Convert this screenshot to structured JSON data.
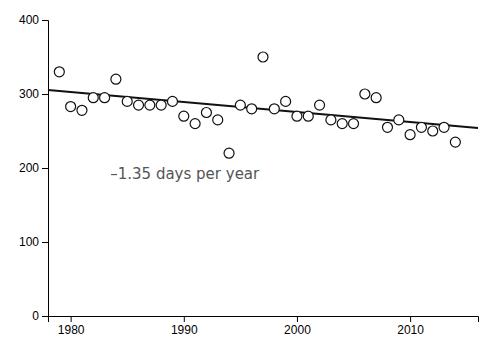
{
  "chart_data": {
    "type": "scatter",
    "series": [
      {
        "type": "scatter",
        "color": "#111111",
        "marker": "circle-open",
        "x": [
          1979,
          1980,
          1981,
          1982,
          1983,
          1984,
          1985,
          1986,
          1987,
          1988,
          1989,
          1990,
          1991,
          1992,
          1993,
          1994,
          1995,
          1996,
          1997,
          1998,
          1999,
          2000,
          2001,
          2002,
          2003,
          2004,
          2005,
          2006,
          2007,
          2008,
          2009,
          2010,
          2011,
          2012,
          2013,
          2014
        ],
        "values": [
          330,
          283,
          278,
          295,
          295,
          320,
          290,
          285,
          285,
          285,
          290,
          270,
          260,
          275,
          265,
          220,
          285,
          280,
          350,
          280,
          290,
          270,
          270,
          285,
          265,
          260,
          260,
          300,
          295,
          255,
          265,
          245,
          255,
          250,
          255,
          235
        ]
      },
      {
        "type": "line",
        "color": "#111111",
        "line_style": "solid",
        "x": [
          1978,
          2016
        ],
        "values": [
          305.35,
          254.05
        ]
      }
    ],
    "annotations": [
      {
        "text": "–1.35 days per year",
        "x": 1983.5,
        "y": 185,
        "color": "#555555"
      }
    ],
    "xlim": [
      1978,
      2016
    ],
    "ylim": [
      0,
      400
    ],
    "xticks": [
      1980,
      1990,
      2000,
      2010
    ],
    "yticks": [
      0,
      100,
      200,
      300,
      400
    ],
    "grid": false
  }
}
